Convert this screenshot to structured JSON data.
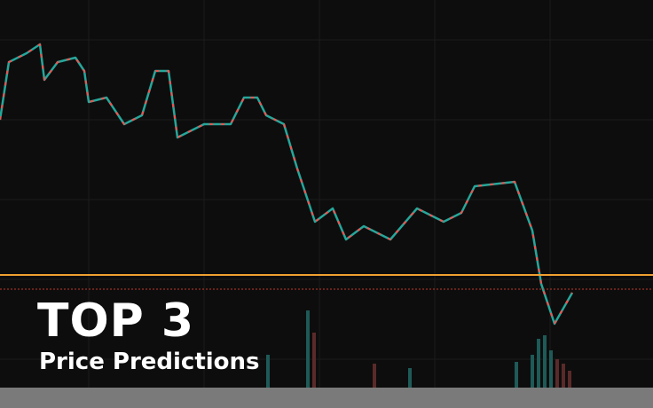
{
  "headline": {
    "title": "TOP 3",
    "subtitle": "Price Predictions"
  }
}
